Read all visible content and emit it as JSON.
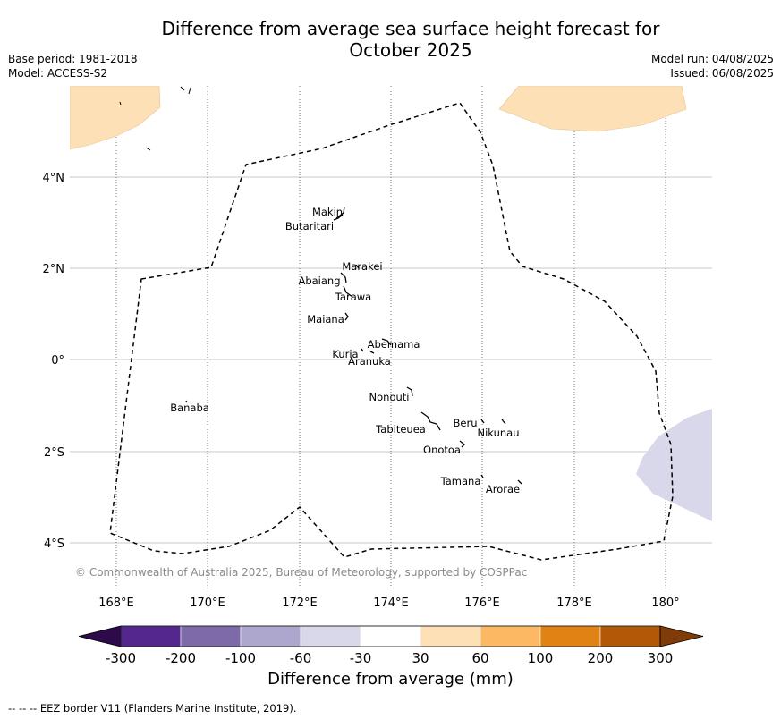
{
  "header": {
    "title_line1": "Difference from average sea surface height forecast for",
    "title_line2": "October 2025",
    "base_period": "Base period: 1981-2018",
    "model": "Model: ACCESS-S2",
    "model_run": "Model run: 04/08/2025",
    "issued": "Issued: 06/08/2025"
  },
  "map": {
    "lon_ticks": [
      "168°E",
      "170°E",
      "172°E",
      "174°E",
      "176°E",
      "178°E",
      "180°"
    ],
    "lat_ticks": [
      "4°N",
      "2°N",
      "0°",
      "2°S",
      "4°S"
    ],
    "copyright": "© Commonwealth of Australia 2025, Bureau of Meteorology, supported by COSPPac",
    "islands": [
      "Makin",
      "Butaritari",
      "Marakei",
      "Abaiang",
      "Tarawa",
      "Maiana",
      "Abemama",
      "Kuria",
      "Aranuka",
      "Banaba",
      "Nonouti",
      "Tabiteuea",
      "Beru",
      "Nikunau",
      "Onotoa",
      "Tamana",
      "Arorae"
    ]
  },
  "colorbar": {
    "title": "Difference from average (mm)",
    "tick_labels": [
      "-300",
      "-200",
      "-100",
      "-60",
      "-30",
      "30",
      "60",
      "100",
      "200",
      "300"
    ],
    "colors": {
      "under": "#2d0a4a",
      "bins": [
        "#54278f",
        "#7d6ba9",
        "#ada6cd",
        "#d8d8ea",
        "#ffffff",
        "#fee0b6",
        "#fdb863",
        "#e08214",
        "#b35806"
      ],
      "over": "#7f3b08"
    }
  },
  "footer": {
    "legend_line": "--  --  -- EEZ border V11 (Flanders Marine Institute, 2019)."
  }
}
